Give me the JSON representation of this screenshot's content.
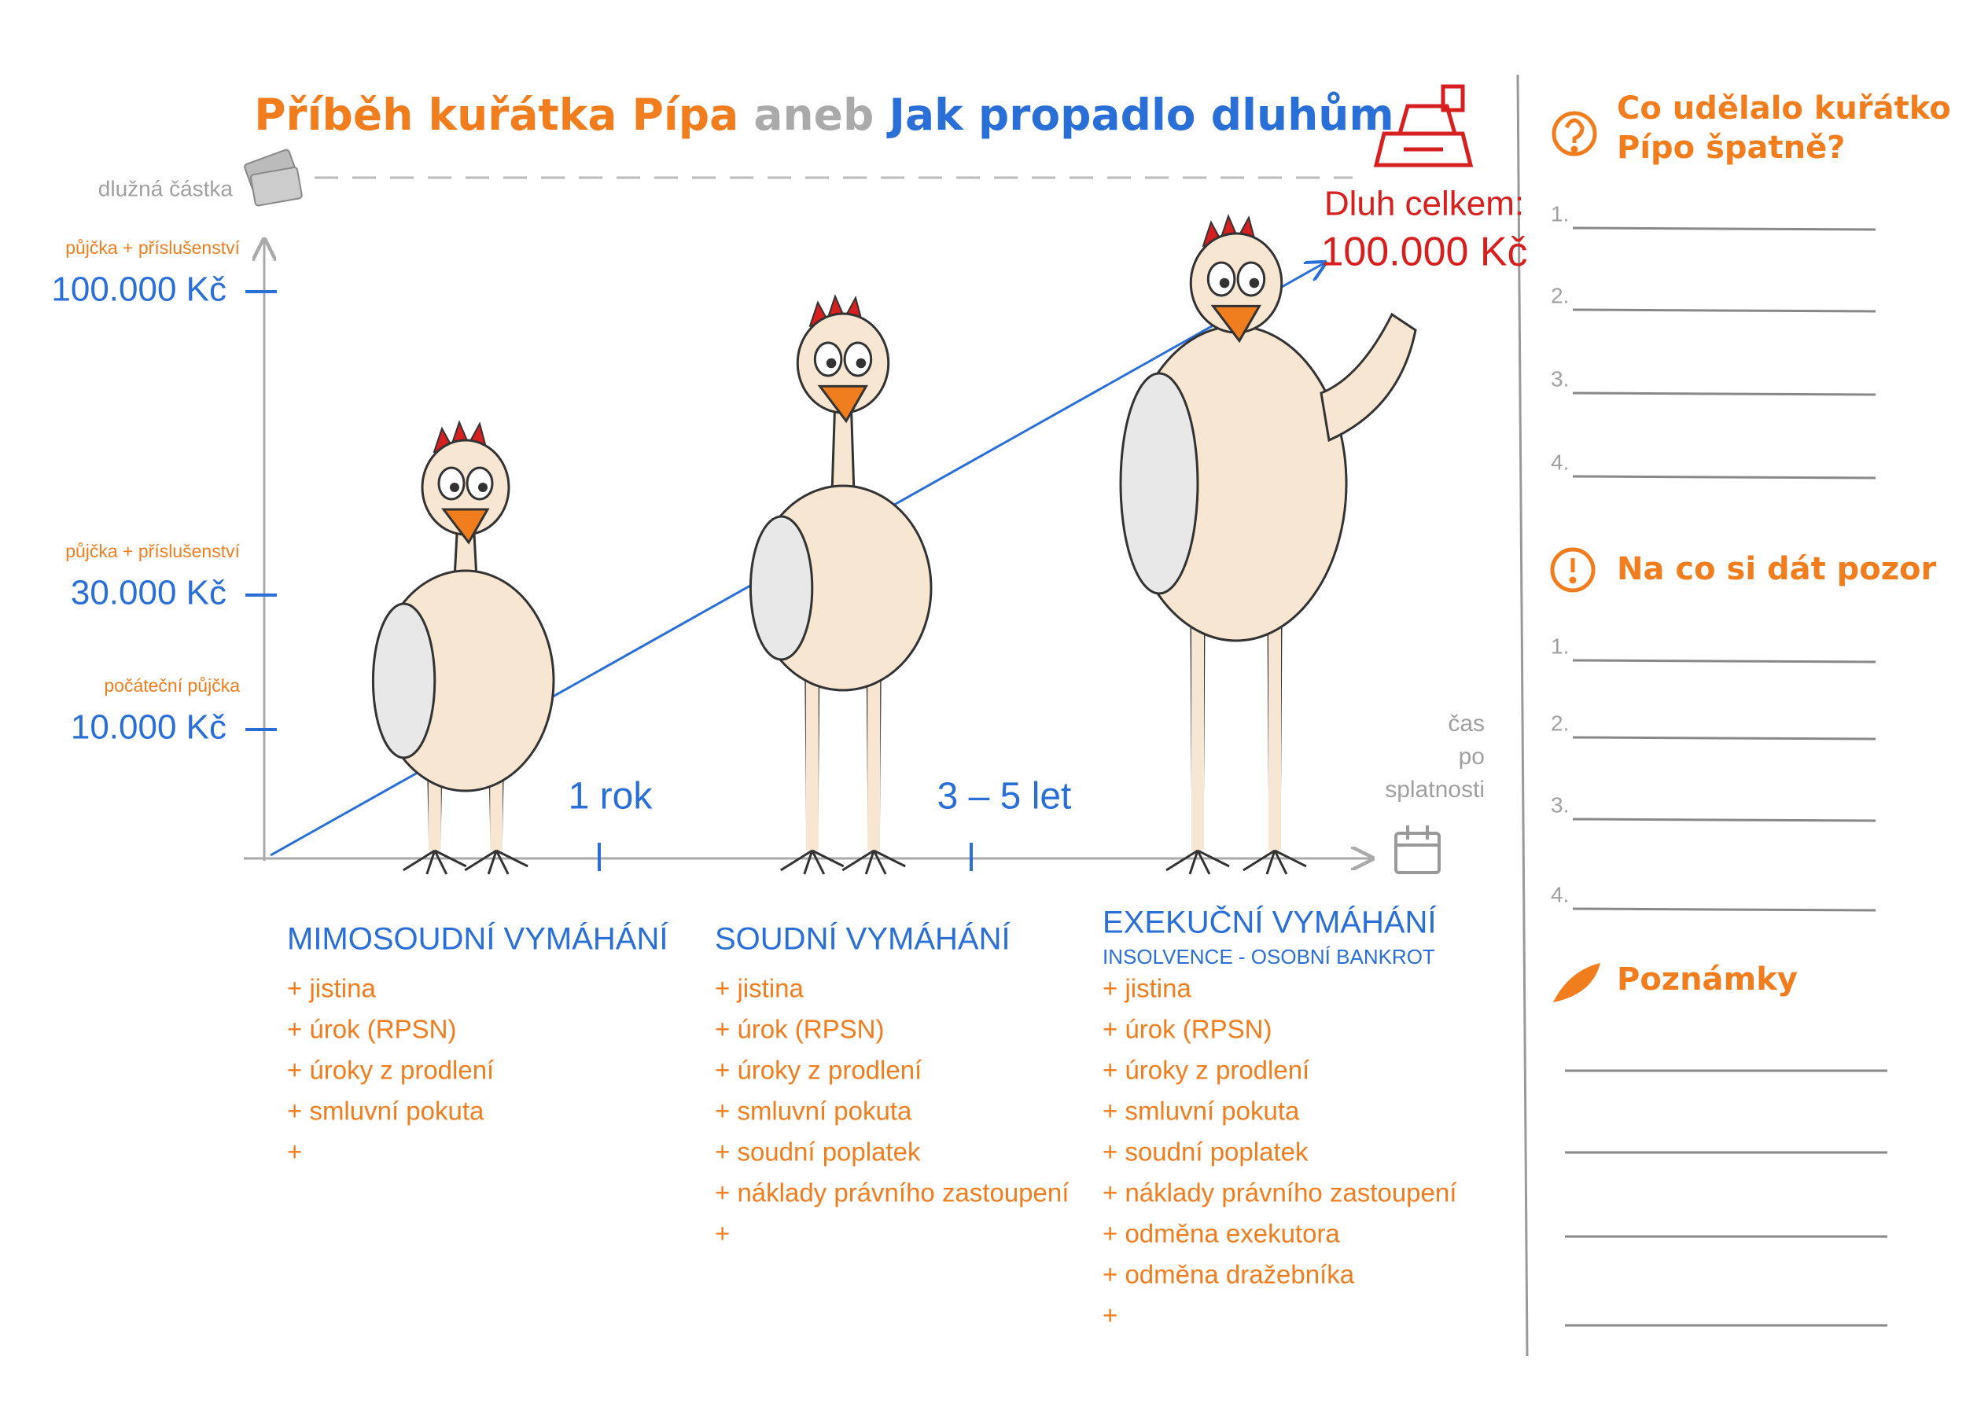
{
  "title": {
    "part1": "Příběh kuřátka Pípa",
    "part2": "aneb",
    "part3": "Jak propadlo dluhům"
  },
  "axis": {
    "y_label": "dlužná částka",
    "levels": [
      {
        "note": "půjčka + příslušenství",
        "amount": "100.000 Kč"
      },
      {
        "note": "půjčka + příslušenství",
        "amount": "30.000 Kč"
      },
      {
        "note": "počáteční půjčka",
        "amount": "10.000 Kč"
      }
    ],
    "x_label": [
      "čas",
      "po",
      "splatnosti"
    ],
    "periods": [
      "1 rok",
      "3 – 5 let"
    ]
  },
  "total": {
    "label": "Dluh celkem:",
    "amount": "100.000 Kč"
  },
  "stages": [
    {
      "title": "MIMOSOUDNÍ VYMÁHÁNÍ",
      "items": [
        "+ jistina",
        "+ úrok (RPSN)",
        "+ úroky z prodlení",
        "+ smluvní pokuta",
        "+"
      ]
    },
    {
      "title": "SOUDNÍ VYMÁHÁNÍ",
      "items": [
        "+ jistina",
        "+ úrok (RPSN)",
        "+ úroky z prodlení",
        "+ smluvní pokuta",
        "+ soudní poplatek",
        "+ náklady právního zastoupení",
        "+"
      ]
    },
    {
      "title": "EXEKUČNÍ VYMÁHÁNÍ",
      "subtitle": "INSOLVENCE - OSOBNÍ BANKROT",
      "items": [
        "+ jistina",
        "+ úrok (RPSN)",
        "+ úroky z prodlení",
        "+ smluvní pokuta",
        "+ soudní poplatek",
        "+ náklady právního zastoupení",
        "+ odměna exekutora",
        "+ odměna dražebníka",
        "+"
      ]
    }
  ],
  "sidebar": {
    "mistakes": {
      "title": [
        "Co udělalo kuřátko",
        "Pípo špatně?"
      ],
      "numbers": [
        "1.",
        "2.",
        "3.",
        "4."
      ]
    },
    "warnings": {
      "title": "Na co si dát pozor",
      "numbers": [
        "1.",
        "2.",
        "3.",
        "4."
      ]
    },
    "notes": {
      "title": "Poznámky"
    }
  }
}
